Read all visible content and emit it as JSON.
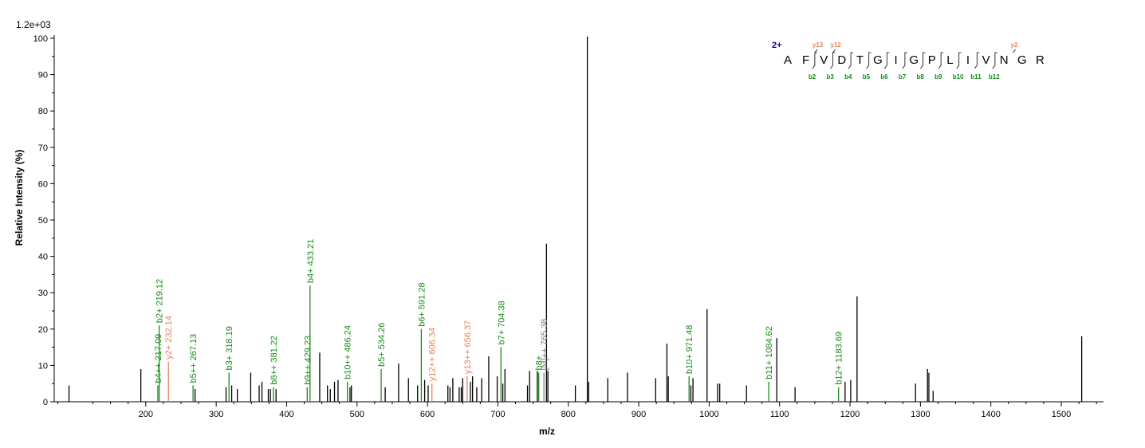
{
  "colors": {
    "unassigned": "#000000",
    "b_ion": "#1a8a1a",
    "y_ion": "#e8825a",
    "precursor": "#808080",
    "charge": "#00008b"
  },
  "chart_data": {
    "type": "bar",
    "title": "",
    "scale_label": "1.2e+03",
    "xlabel": "m/z",
    "ylabel": "Relative   Intensity (%)",
    "xlim": [
      70,
      1560
    ],
    "ylim": [
      0,
      100
    ],
    "x_major_ticks": [
      200,
      300,
      400,
      500,
      600,
      700,
      800,
      900,
      1000,
      1100,
      1200,
      1300,
      1400,
      1500
    ],
    "x_tick_labels": [
      "200",
      "300",
      "400",
      "500",
      "600",
      "700",
      "800",
      "900",
      "1000",
      "1100",
      "1200",
      "1300",
      "1400",
      "1500"
    ],
    "y_ticks": [
      0,
      10,
      20,
      30,
      40,
      50,
      60,
      70,
      80,
      90,
      100
    ],
    "y_tick_labels": [
      "0",
      "10",
      "20",
      "30",
      "40",
      "50",
      "60",
      "70",
      "80",
      "90",
      "100"
    ],
    "grid": false,
    "peaks": [
      {
        "mz": 91,
        "intensity": 4.5,
        "ion": "none"
      },
      {
        "mz": 193,
        "intensity": 9,
        "ion": "none"
      },
      {
        "mz": 217.09,
        "intensity": 4.5,
        "ion": "b",
        "label": "b4++ 217.09"
      },
      {
        "mz": 219.12,
        "intensity": 21,
        "ion": "b",
        "label": "b2+ 219.12"
      },
      {
        "mz": 232.14,
        "intensity": 11,
        "ion": "y",
        "label": "y2+ 232.14"
      },
      {
        "mz": 267.13,
        "intensity": 4.5,
        "ion": "b",
        "label": "b5++ 267.13"
      },
      {
        "mz": 270,
        "intensity": 3.5,
        "ion": "none"
      },
      {
        "mz": 314,
        "intensity": 4,
        "ion": "none"
      },
      {
        "mz": 318.19,
        "intensity": 8,
        "ion": "b",
        "label": "b3+ 318.19"
      },
      {
        "mz": 322,
        "intensity": 4.5,
        "ion": "none"
      },
      {
        "mz": 330,
        "intensity": 3.5,
        "ion": "none"
      },
      {
        "mz": 349,
        "intensity": 8,
        "ion": "none"
      },
      {
        "mz": 361,
        "intensity": 4.5,
        "ion": "none"
      },
      {
        "mz": 365,
        "intensity": 5.5,
        "ion": "none"
      },
      {
        "mz": 374,
        "intensity": 3.5,
        "ion": "none"
      },
      {
        "mz": 377,
        "intensity": 3.5,
        "ion": "none"
      },
      {
        "mz": 381.22,
        "intensity": 4,
        "ion": "b",
        "label": "b8++ 381.22"
      },
      {
        "mz": 385,
        "intensity": 3.5,
        "ion": "none"
      },
      {
        "mz": 429.23,
        "intensity": 4,
        "ion": "b",
        "label": "b9++ 429.23"
      },
      {
        "mz": 433.21,
        "intensity": 32,
        "ion": "b",
        "label": "b4+ 433.21"
      },
      {
        "mz": 447,
        "intensity": 13.5,
        "ion": "none"
      },
      {
        "mz": 458,
        "intensity": 4.5,
        "ion": "none"
      },
      {
        "mz": 462,
        "intensity": 3.5,
        "ion": "none"
      },
      {
        "mz": 468,
        "intensity": 5.5,
        "ion": "none"
      },
      {
        "mz": 473,
        "intensity": 6,
        "ion": "none"
      },
      {
        "mz": 486.24,
        "intensity": 5.5,
        "ion": "b",
        "label": "b10++ 486.24"
      },
      {
        "mz": 490,
        "intensity": 4,
        "ion": "none"
      },
      {
        "mz": 492,
        "intensity": 4.5,
        "ion": "none"
      },
      {
        "mz": 534.26,
        "intensity": 9,
        "ion": "b",
        "label": "b5+ 534.26"
      },
      {
        "mz": 540,
        "intensity": 4,
        "ion": "none"
      },
      {
        "mz": 559,
        "intensity": 10.5,
        "ion": "none"
      },
      {
        "mz": 573,
        "intensity": 6.5,
        "ion": "none"
      },
      {
        "mz": 586,
        "intensity": 4.5,
        "ion": "none"
      },
      {
        "mz": 591.28,
        "intensity": 20,
        "ion": "b",
        "label": "b6+ 591.28"
      },
      {
        "mz": 596,
        "intensity": 6,
        "ion": "none"
      },
      {
        "mz": 601,
        "intensity": 4.5,
        "ion": "none"
      },
      {
        "mz": 606.34,
        "intensity": 5,
        "ion": "y",
        "label": "y12++ 606.34"
      },
      {
        "mz": 629,
        "intensity": 4.5,
        "ion": "none"
      },
      {
        "mz": 632,
        "intensity": 4,
        "ion": "none"
      },
      {
        "mz": 636,
        "intensity": 6.5,
        "ion": "none"
      },
      {
        "mz": 645,
        "intensity": 4,
        "ion": "none"
      },
      {
        "mz": 648,
        "intensity": 4,
        "ion": "none"
      },
      {
        "mz": 650,
        "intensity": 6.5,
        "ion": "none"
      },
      {
        "mz": 656.37,
        "intensity": 7,
        "ion": "y",
        "label": "y13++ 656.37"
      },
      {
        "mz": 661,
        "intensity": 5.5,
        "ion": "none"
      },
      {
        "mz": 664,
        "intensity": 7,
        "ion": "none"
      },
      {
        "mz": 670,
        "intensity": 4,
        "ion": "none"
      },
      {
        "mz": 677,
        "intensity": 6.5,
        "ion": "none"
      },
      {
        "mz": 687,
        "intensity": 12.5,
        "ion": "none"
      },
      {
        "mz": 699,
        "intensity": 7,
        "ion": "none"
      },
      {
        "mz": 704.38,
        "intensity": 15,
        "ion": "b",
        "label": "b7+ 704.38"
      },
      {
        "mz": 707,
        "intensity": 5,
        "ion": "none"
      },
      {
        "mz": 710,
        "intensity": 9,
        "ion": "none"
      },
      {
        "mz": 742,
        "intensity": 4.5,
        "ion": "none"
      },
      {
        "mz": 745,
        "intensity": 8.5,
        "ion": "none"
      },
      {
        "mz": 756,
        "intensity": 8.5,
        "ion": "none"
      },
      {
        "mz": 758,
        "intensity": 8,
        "ion": "b",
        "label": "b8+"
      },
      {
        "mz": 765.38,
        "intensity": 8,
        "ion": "precursor",
        "label": "[M]++ 765.38"
      },
      {
        "mz": 769,
        "intensity": 43.5,
        "ion": "none"
      },
      {
        "mz": 771,
        "intensity": 8.5,
        "ion": "none"
      },
      {
        "mz": 810,
        "intensity": 4.5,
        "ion": "none"
      },
      {
        "mz": 827,
        "intensity": 100.5,
        "ion": "none"
      },
      {
        "mz": 829,
        "intensity": 5.5,
        "ion": "none"
      },
      {
        "mz": 856,
        "intensity": 6.5,
        "ion": "none"
      },
      {
        "mz": 884,
        "intensity": 8,
        "ion": "none"
      },
      {
        "mz": 924,
        "intensity": 6.5,
        "ion": "none"
      },
      {
        "mz": 940,
        "intensity": 16,
        "ion": "none"
      },
      {
        "mz": 942,
        "intensity": 7,
        "ion": "none"
      },
      {
        "mz": 971.48,
        "intensity": 7,
        "ion": "b",
        "label": "b10+ 971.48"
      },
      {
        "mz": 974,
        "intensity": 4.5,
        "ion": "none"
      },
      {
        "mz": 977,
        "intensity": 6.5,
        "ion": "none"
      },
      {
        "mz": 997,
        "intensity": 25.5,
        "ion": "none"
      },
      {
        "mz": 1012,
        "intensity": 5,
        "ion": "none"
      },
      {
        "mz": 1015,
        "intensity": 5,
        "ion": "none"
      },
      {
        "mz": 1053,
        "intensity": 4.5,
        "ion": "none"
      },
      {
        "mz": 1084.62,
        "intensity": 5.5,
        "ion": "b",
        "label": "b11+ 1084.62"
      },
      {
        "mz": 1096,
        "intensity": 17.5,
        "ion": "none"
      },
      {
        "mz": 1122,
        "intensity": 4,
        "ion": "none"
      },
      {
        "mz": 1183.69,
        "intensity": 4,
        "ion": "b",
        "label": "b12+ 1183.69"
      },
      {
        "mz": 1193,
        "intensity": 5.5,
        "ion": "none"
      },
      {
        "mz": 1201,
        "intensity": 6,
        "ion": "none"
      },
      {
        "mz": 1210,
        "intensity": 29,
        "ion": "none"
      },
      {
        "mz": 1293,
        "intensity": 5,
        "ion": "none"
      },
      {
        "mz": 1310,
        "intensity": 9,
        "ion": "none"
      },
      {
        "mz": 1312,
        "intensity": 8,
        "ion": "none"
      },
      {
        "mz": 1318,
        "intensity": 3,
        "ion": "none"
      },
      {
        "mz": 1529,
        "intensity": 18,
        "ion": "none"
      }
    ],
    "sequence": {
      "charge": "2+",
      "residues": [
        "A",
        "F",
        "V",
        "D",
        "T",
        "G",
        "I",
        "G",
        "P",
        "L",
        "I",
        "V",
        "N",
        "G",
        "R"
      ],
      "b_ions": [
        {
          "after": 2,
          "label": "b2"
        },
        {
          "after": 3,
          "label": "b3"
        },
        {
          "after": 4,
          "label": "b4"
        },
        {
          "after": 5,
          "label": "b5"
        },
        {
          "after": 6,
          "label": "b6"
        },
        {
          "after": 7,
          "label": "b7"
        },
        {
          "after": 8,
          "label": "b8"
        },
        {
          "after": 9,
          "label": "b9"
        },
        {
          "after": 10,
          "label": "b10"
        },
        {
          "after": 11,
          "label": "b11"
        },
        {
          "after": 12,
          "label": "b12"
        }
      ],
      "y_ions": [
        {
          "after": 2,
          "label": "y13"
        },
        {
          "after": 3,
          "label": "y12"
        },
        {
          "after": 13,
          "label": "y2"
        }
      ]
    }
  }
}
